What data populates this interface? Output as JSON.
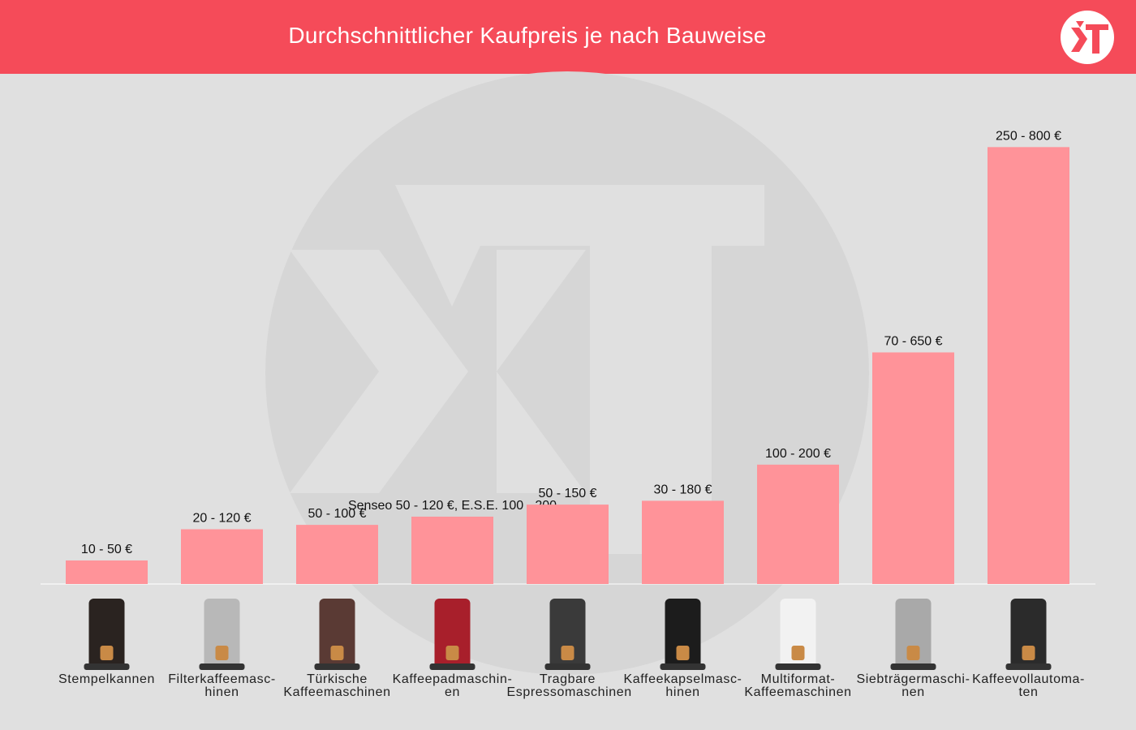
{
  "header": {
    "title": "Durchschnittlicher Kaufpreis je nach Bauweise",
    "brand_color": "#f54b59",
    "logo_icon": "xt-logo-icon"
  },
  "colors": {
    "bar": "#ff9399",
    "background": "#e0e0e0",
    "watermark": "#d4d4d4"
  },
  "chart_data": {
    "type": "bar",
    "title": "Durchschnittlicher Kaufpreis je nach Bauweise",
    "xlabel": "",
    "ylabel": "",
    "ylim": [
      0,
      800
    ],
    "grid": false,
    "categories": [
      "Stempelkannen",
      "Filterkaffeemaschinen",
      "Türkische Kaffeemaschinen",
      "Kaffeepadmaschinen",
      "Tragbare Espressomaschinen",
      "Kaffeekapselmaschinen",
      "Multiformat-Kaffeemaschinen",
      "Siebträgermaschinen",
      "Kaffeevollautomaten"
    ],
    "category_lines": [
      [
        "Stempelkannen"
      ],
      [
        "Filterkaffeemasc-",
        "hinen"
      ],
      [
        "Türkische",
        "Kaffeemaschinen"
      ],
      [
        "Kaffeepadmaschin-",
        "en"
      ],
      [
        "Tragbare",
        "Espressomaschinen"
      ],
      [
        "Kaffeekapselmasc-",
        "hinen"
      ],
      [
        "Multiformat-",
        "Kaffeemaschinen"
      ],
      [
        "Siebträgermaschi-",
        "nen"
      ],
      [
        "Kaffeevollautoma-",
        "ten"
      ]
    ],
    "data_labels": [
      "10 - 50 €",
      "20 - 120 €",
      "50 - 100 €",
      "Senseo 50 - 120 €, E.S.E. 100 - 200",
      "50 - 150 €",
      "30 - 180 €",
      "100 - 200 €",
      "70 - 650 €",
      "250 - 800 €"
    ],
    "values": [
      43,
      100,
      108,
      123,
      145,
      152,
      218,
      423,
      798
    ],
    "product_icons": [
      "french-press-icon",
      "filter-coffee-machine-icon",
      "turkish-coffee-machine-icon",
      "pad-coffee-machine-icon",
      "portable-espresso-machine-icon",
      "capsule-coffee-machine-icon",
      "multiformat-coffee-machine-icon",
      "portafilter-machine-icon",
      "fully-automatic-coffee-machine-icon"
    ]
  }
}
